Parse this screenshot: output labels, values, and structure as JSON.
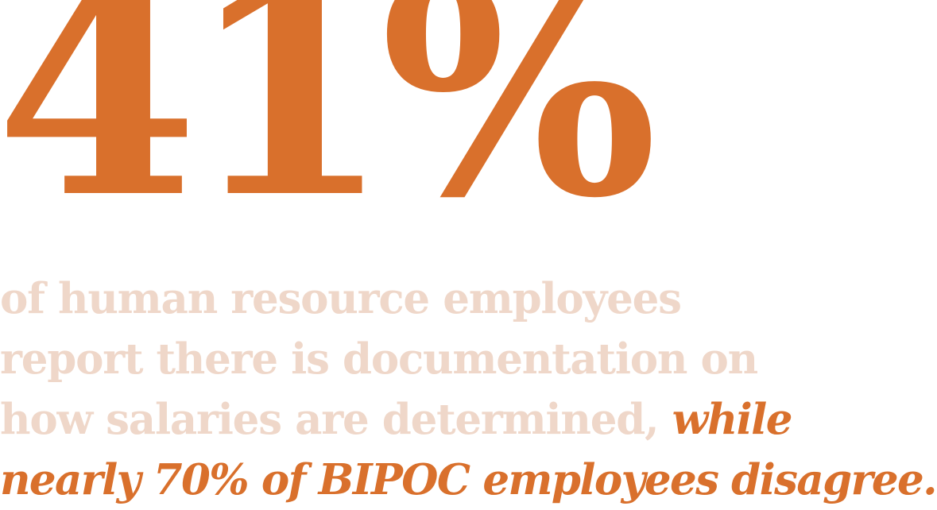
{
  "colors": {
    "accent": "#d9702c",
    "muted": "#efd7c9",
    "background": "#ffffff"
  },
  "stat": {
    "value": "41%"
  },
  "statement": {
    "line_1": "of human resource employees",
    "line_2": "report there is documentation on",
    "line_3_muted": "how salaries are determined,",
    "line_3_accent": "while",
    "line_4_accent": "nearly 70% of BIPOC employees disagree."
  }
}
